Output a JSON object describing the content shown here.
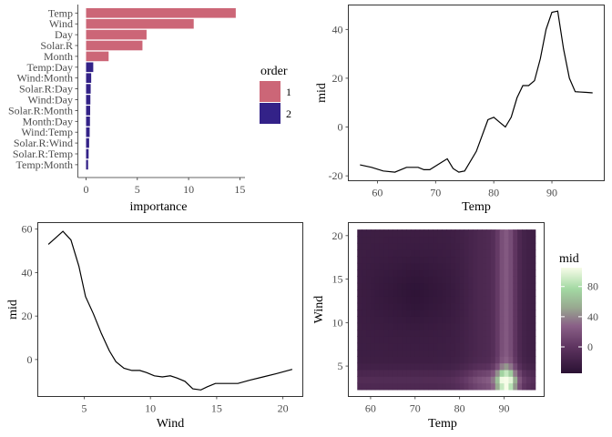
{
  "colors": {
    "order1": "#cc6677",
    "order2": "#332288",
    "line": "#000000"
  },
  "chart_data": [
    {
      "type": "bar",
      "orientation": "horizontal",
      "categories": [
        "Temp",
        "Wind",
        "Day",
        "Solar.R",
        "Month",
        "Temp:Day",
        "Wind:Month",
        "Solar.R:Day",
        "Wind:Day",
        "Solar.R:Month",
        "Month:Day",
        "Wind:Temp",
        "Solar.R:Wind",
        "Solar.R:Temp",
        "Temp:Month"
      ],
      "values": [
        14.6,
        10.5,
        5.9,
        5.5,
        2.2,
        0.7,
        0.5,
        0.45,
        0.42,
        0.4,
        0.38,
        0.35,
        0.3,
        0.25,
        0.2
      ],
      "order": [
        1,
        1,
        1,
        1,
        1,
        2,
        2,
        2,
        2,
        2,
        2,
        2,
        2,
        2,
        2
      ],
      "xlabel": "importance",
      "xlim": [
        -0.8,
        15.5
      ],
      "xticks": [
        0,
        5,
        10,
        15
      ],
      "legend": {
        "title": "order",
        "entries": [
          "1",
          "2"
        ],
        "position": "right"
      }
    },
    {
      "type": "line",
      "xlabel": "Temp",
      "ylabel": "mid",
      "xlim": [
        55,
        99
      ],
      "ylim": [
        -22,
        50
      ],
      "xticks": [
        60,
        70,
        80,
        90
      ],
      "yticks": [
        -20,
        0,
        20,
        40
      ],
      "x": [
        57,
        59,
        61,
        63,
        65,
        67,
        68,
        69,
        71,
        72,
        73,
        74,
        75,
        77,
        79,
        80,
        81,
        82,
        83,
        84,
        85,
        86,
        87,
        88,
        89,
        90,
        91,
        92,
        93,
        94,
        96,
        97
      ],
      "y": [
        -15.5,
        -16.5,
        -18,
        -18.5,
        -16.5,
        -16.5,
        -17.5,
        -17.5,
        -14.5,
        -13,
        -17,
        -18.5,
        -18,
        -10,
        3,
        4,
        2,
        0,
        4,
        12,
        17,
        17,
        19,
        28,
        40,
        47,
        47.5,
        32,
        20,
        14.5,
        14.2,
        14
      ]
    },
    {
      "type": "line",
      "xlabel": "Wind",
      "ylabel": "mid",
      "xlim": [
        1.5,
        21.5
      ],
      "ylim": [
        -17,
        63
      ],
      "xticks": [
        5,
        10,
        15,
        20
      ],
      "yticks": [
        0,
        20,
        40,
        60
      ],
      "x": [
        2.3,
        3.4,
        4.0,
        4.6,
        5.1,
        5.7,
        6.3,
        6.9,
        7.4,
        8.0,
        8.6,
        9.2,
        9.7,
        10.3,
        10.9,
        11.5,
        12.0,
        12.6,
        13.2,
        13.8,
        14.3,
        14.9,
        15.5,
        16.6,
        17.5,
        18.5,
        19.5,
        20.7
      ],
      "y": [
        53,
        59,
        55,
        43,
        29,
        21,
        12,
        4,
        -1,
        -4,
        -5,
        -5,
        -6,
        -7.5,
        -8,
        -7.5,
        -8.5,
        -10,
        -13.5,
        -14,
        -12.5,
        -11,
        -11,
        -11,
        -9.5,
        -8,
        -6.5,
        -4.5
      ]
    },
    {
      "type": "heatmap",
      "xlabel": "Temp",
      "ylabel": "Wind",
      "xlim": [
        55,
        99
      ],
      "ylim": [
        1.5,
        21.5
      ],
      "xticks": [
        60,
        70,
        80,
        90
      ],
      "yticks": [
        5,
        10,
        15,
        20
      ],
      "x_range": [
        57,
        97
      ],
      "y_range": [
        2.3,
        20.7
      ],
      "legend": {
        "title": "mid",
        "ticks": [
          0,
          40,
          80
        ],
        "range": [
          -35,
          105
        ],
        "position": "right"
      }
    }
  ]
}
